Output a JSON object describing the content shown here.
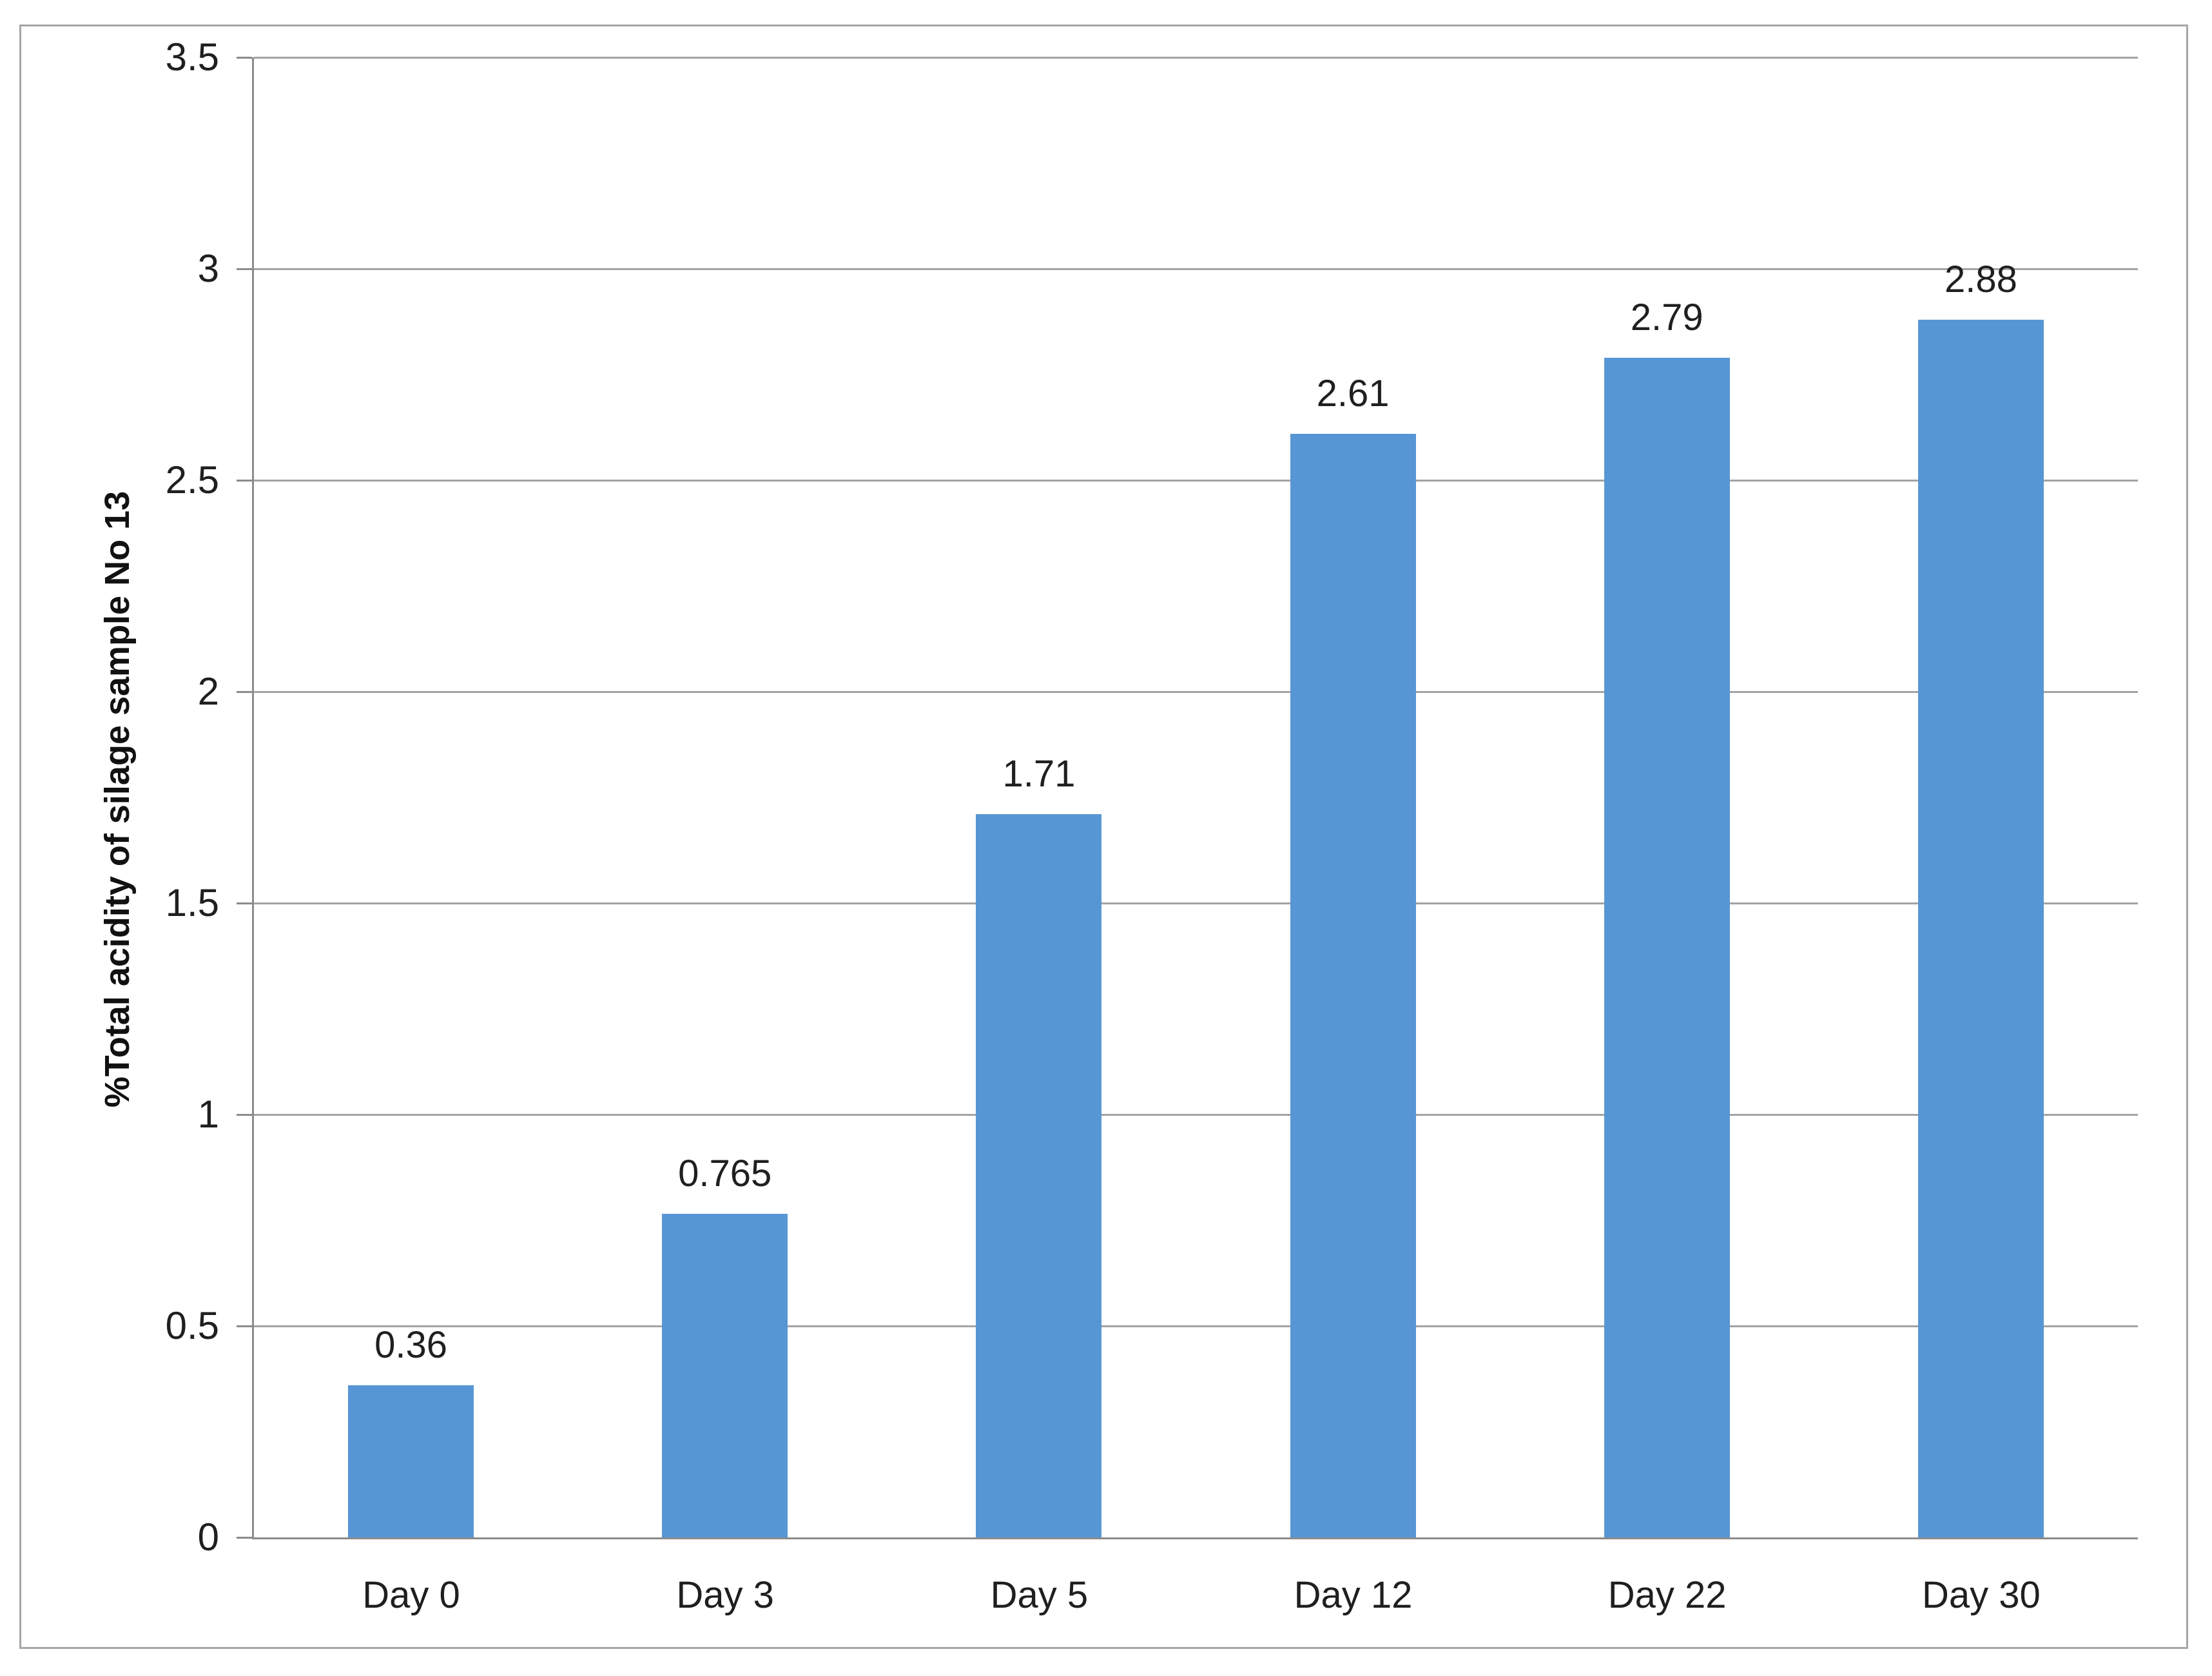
{
  "figure": {
    "background": "#ffffff",
    "border_color": "#a6a6a6"
  },
  "chart_data": {
    "type": "bar",
    "title": "",
    "categories": [
      "Day 0",
      "Day 3",
      "Day 5",
      "Day 12",
      "Day 22",
      "Day 30"
    ],
    "values": [
      0.36,
      0.765,
      1.71,
      2.61,
      2.79,
      2.88
    ],
    "data_labels": [
      "0.36",
      "0.765",
      "1.71",
      "2.61",
      "2.79",
      "2.88"
    ],
    "xlabel": "",
    "ylabel": "%Total acidity of silage sample No 13",
    "ylim": [
      0,
      3.5
    ],
    "ytick_step": 0.5,
    "yticks": [
      "0",
      "0.5",
      "1",
      "1.5",
      "2",
      "2.5",
      "3",
      "3.5"
    ],
    "grid": "horizontal",
    "legend": "none",
    "bar_color": "#5796D4",
    "gridline_color": "#a3a3a3",
    "axis_line_color": "#8c8c8c",
    "tick_color": "#8c8c8c",
    "label_color": "#1f1f1f"
  }
}
